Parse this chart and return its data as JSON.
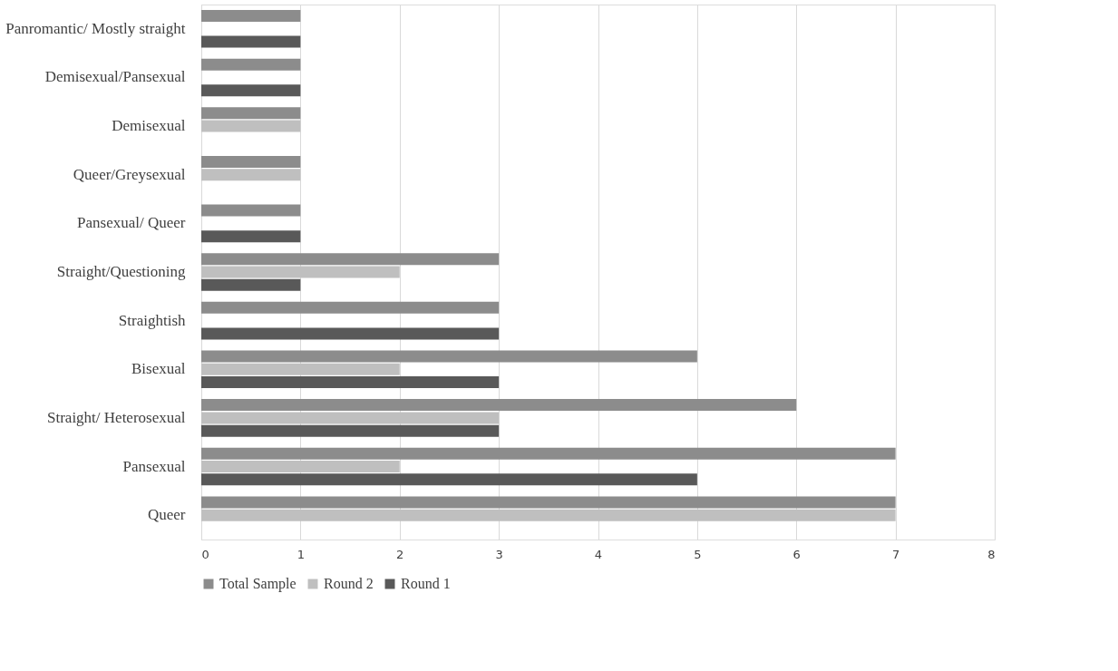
{
  "chart_data": {
    "type": "bar",
    "orientation": "horizontal",
    "categories": [
      "Panromantic/ Mostly straight",
      "Demisexual/Pansexual",
      "Demisexual",
      "Queer/Greysexual",
      "Pansexual/ Queer",
      "Straight/Questioning",
      "Straightish",
      "Bisexual",
      "Straight/ Heterosexual",
      "Pansexual",
      "Queer"
    ],
    "series": [
      {
        "name": "Total Sample",
        "color": "#8c8c8c",
        "values": [
          1,
          1,
          1,
          1,
          1,
          3,
          3,
          5,
          6,
          7,
          7
        ]
      },
      {
        "name": "Round 2",
        "color": "#bfbfbf",
        "values": [
          null,
          null,
          1,
          1,
          null,
          2,
          null,
          2,
          3,
          2,
          7
        ]
      },
      {
        "name": "Round 1",
        "color": "#595959",
        "values": [
          1,
          1,
          null,
          null,
          1,
          1,
          3,
          3,
          3,
          5,
          null
        ]
      }
    ],
    "xlim": [
      0,
      8
    ],
    "xticks": [
      0,
      1,
      2,
      3,
      4,
      5,
      6,
      7,
      8
    ],
    "grid": "x",
    "legend": "bottom"
  }
}
